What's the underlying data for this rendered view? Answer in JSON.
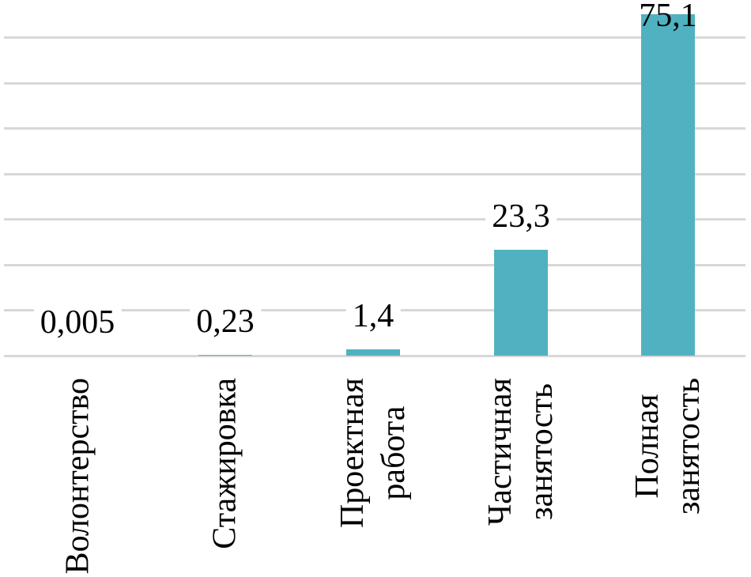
{
  "chart_data": {
    "type": "bar",
    "title": "",
    "xlabel": "",
    "ylabel": "",
    "categories": [
      "Волонтерство",
      "Стажировка",
      "Проектная работа",
      "Частичная занятость",
      "Полная занятость"
    ],
    "category_lines": [
      [
        "Волонтерство"
      ],
      [
        "Стажировка"
      ],
      [
        "Проектная",
        "работа"
      ],
      [
        "Частичная",
        "занятость"
      ],
      [
        "Полная",
        "занятость"
      ]
    ],
    "values": [
      0.005,
      0.23,
      1.4,
      23.3,
      75.1
    ],
    "value_labels": [
      "0,005",
      "0,23",
      "1,4",
      "23,3",
      "75,1"
    ],
    "ylim": [
      0,
      78
    ],
    "gridline_values": [
      0,
      10,
      20,
      30,
      40,
      50,
      60,
      70
    ],
    "grid": "horizontal",
    "legend_position": "none",
    "y_axis_tick_labels": "none",
    "bar_color": "#50B2C0",
    "gridline_color": "#D8D8D8",
    "label_color": "#000000",
    "background_color": "#FFFFFF"
  }
}
